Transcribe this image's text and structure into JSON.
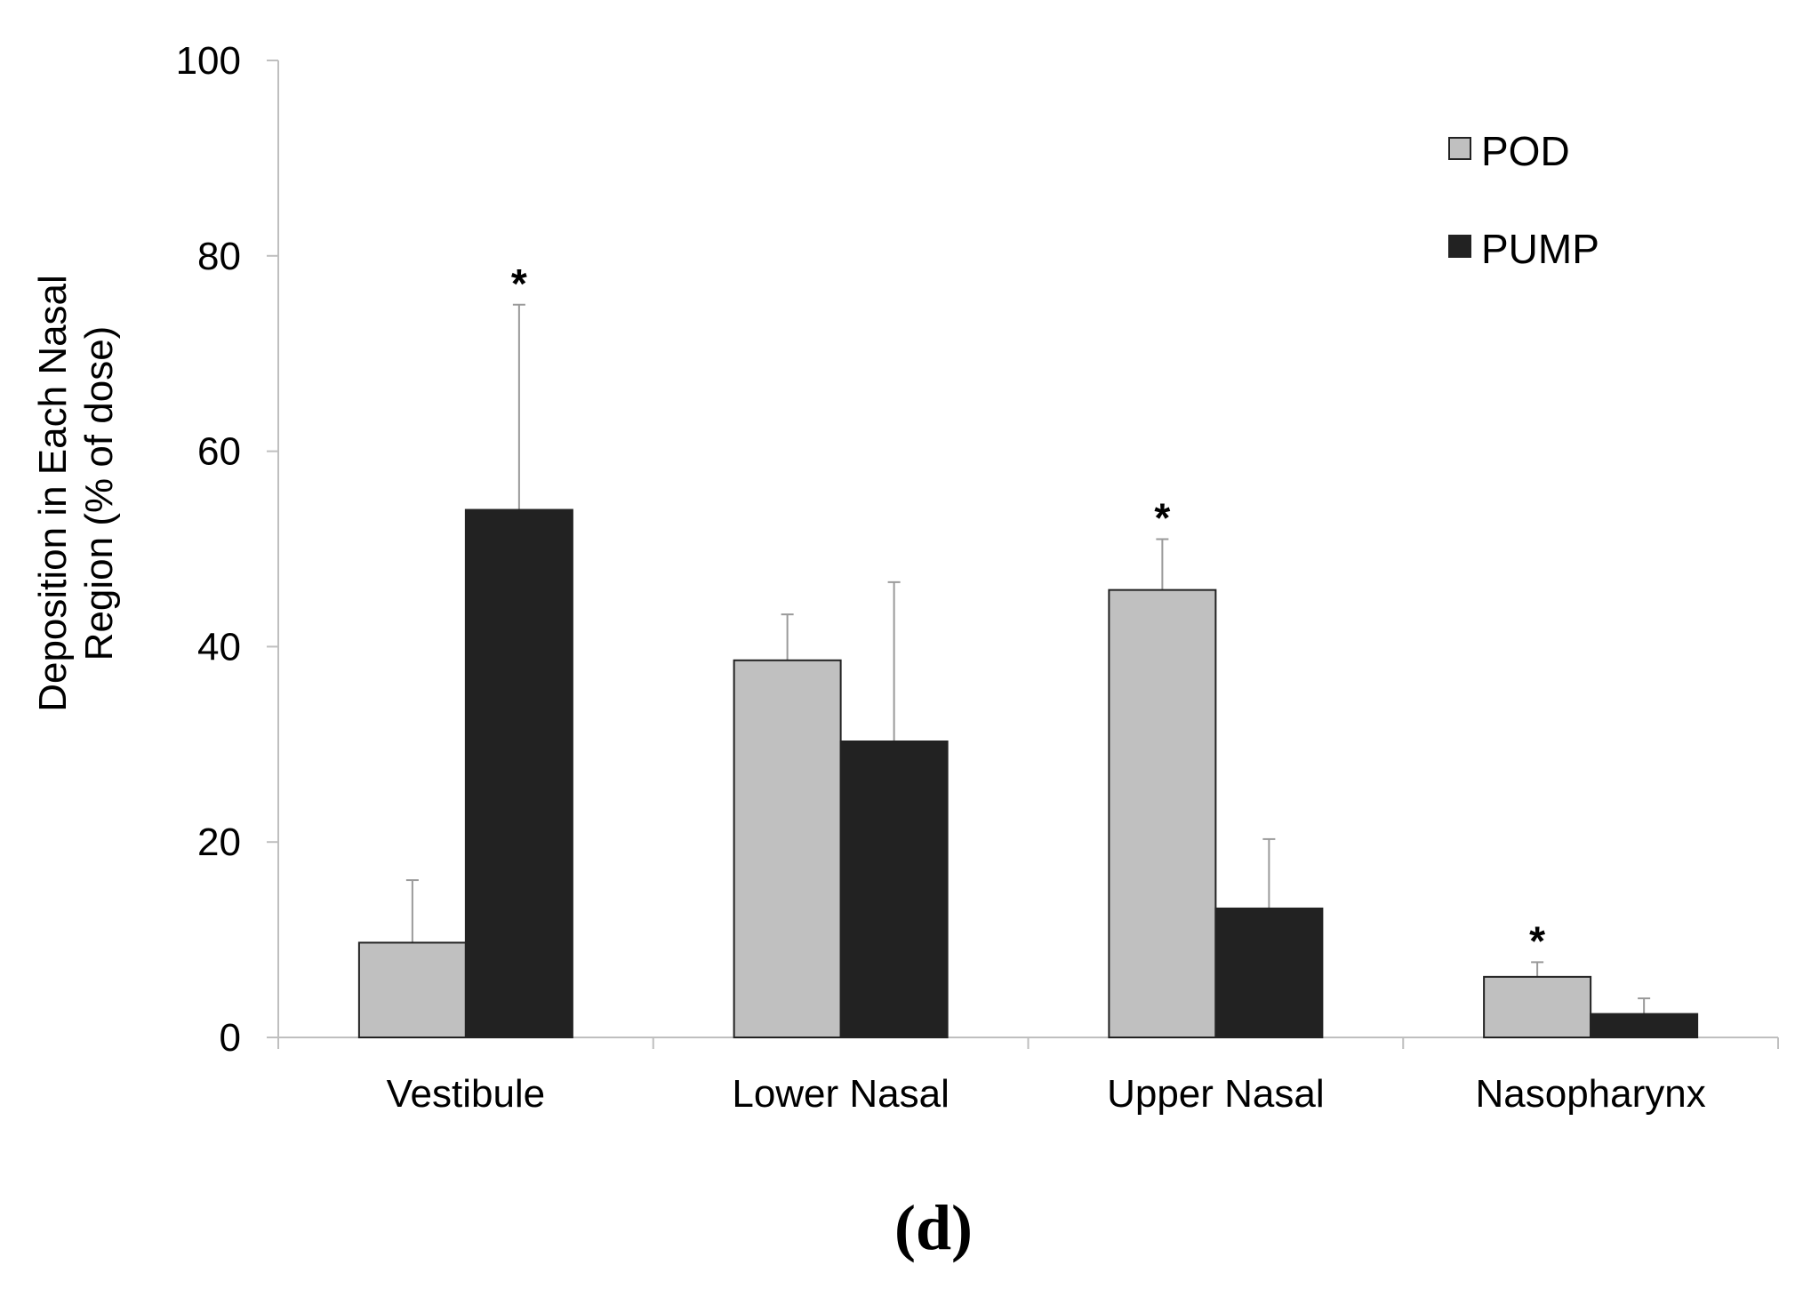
{
  "chart_data": {
    "type": "bar",
    "title": "",
    "xlabel": "",
    "ylabel_lines": [
      "Deposition in Each Nasal",
      "Region (% of dose)"
    ],
    "categories": [
      "Vestibule",
      "Lower Nasal",
      "Upper Nasal",
      "Nasopharynx"
    ],
    "series": [
      {
        "name": "POD",
        "color": "#c0c0c0",
        "values": [
          9.7,
          38.6,
          45.8,
          6.2
        ],
        "error": [
          6.4,
          4.7,
          5.2,
          1.5
        ],
        "significant": [
          false,
          false,
          true,
          true
        ]
      },
      {
        "name": "PUMP",
        "color": "#222222",
        "values": [
          54.0,
          30.3,
          13.2,
          2.4
        ],
        "error": [
          21.0,
          16.3,
          7.1,
          1.6
        ],
        "significant": [
          true,
          false,
          false,
          false
        ]
      }
    ],
    "ylim": [
      0,
      100
    ],
    "yticks": [
      0,
      20,
      40,
      60,
      80,
      100
    ],
    "grid": false,
    "legend_position": "top-right",
    "significance_marker": "*"
  },
  "panel_label": "(d)"
}
